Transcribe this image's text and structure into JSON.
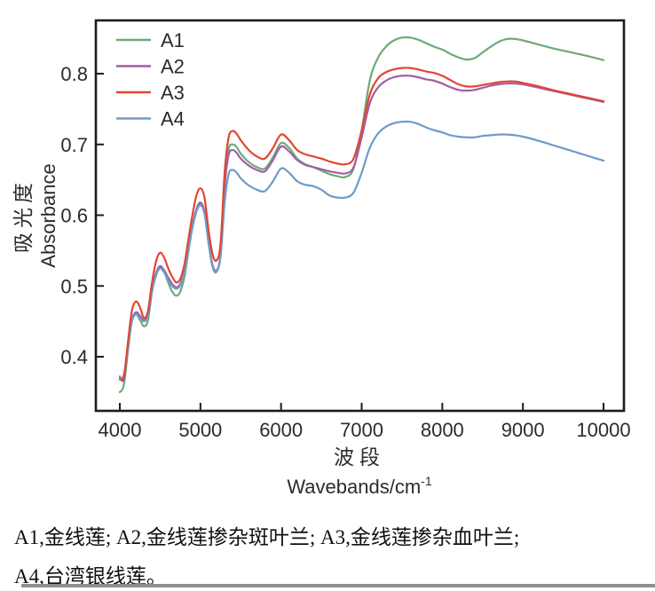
{
  "figure": {
    "ylabel_zh": "吸光度",
    "ylabel_en": "Absorbance",
    "xlabel_zh": "波段",
    "xlabel_en": "Wavebands/cm",
    "xlabel_sup": "-1"
  },
  "chart_data": {
    "type": "line",
    "title": "",
    "xlabel": "波段 Wavebands/cm⁻¹",
    "ylabel": "吸光度 Absorbance",
    "x_axis_range": [
      3700,
      10250
    ],
    "y_axis_range": [
      0.323,
      0.875
    ],
    "xticks": [
      4000,
      5000,
      6000,
      7000,
      8000,
      9000,
      10000
    ],
    "yticks": [
      0.4,
      0.5,
      0.6,
      0.7,
      0.8
    ],
    "grid": false,
    "legend_position": "top-left",
    "x": [
      4000,
      4050,
      4100,
      4150,
      4200,
      4250,
      4300,
      4350,
      4400,
      4450,
      4500,
      4550,
      4600,
      4650,
      4700,
      4750,
      4800,
      4850,
      4900,
      4950,
      5000,
      5050,
      5100,
      5150,
      5200,
      5250,
      5300,
      5350,
      5400,
      5450,
      5500,
      5600,
      5700,
      5800,
      5900,
      6000,
      6100,
      6200,
      6300,
      6400,
      6500,
      6600,
      6700,
      6800,
      6900,
      7000,
      7100,
      7200,
      7300,
      7400,
      7500,
      7600,
      7700,
      7800,
      7900,
      8000,
      8100,
      8200,
      8300,
      8400,
      8500,
      8600,
      8700,
      8800,
      8900,
      9000,
      9200,
      9400,
      9600,
      9800,
      10000
    ],
    "series": [
      {
        "name": "A1",
        "color": "#6eaa78",
        "values": [
          0.35,
          0.36,
          0.408,
          0.45,
          0.46,
          0.452,
          0.443,
          0.452,
          0.492,
          0.518,
          0.528,
          0.52,
          0.505,
          0.492,
          0.486,
          0.492,
          0.512,
          0.548,
          0.583,
          0.608,
          0.618,
          0.605,
          0.562,
          0.527,
          0.52,
          0.545,
          0.645,
          0.693,
          0.7,
          0.696,
          0.687,
          0.675,
          0.668,
          0.666,
          0.682,
          0.702,
          0.695,
          0.68,
          0.672,
          0.668,
          0.663,
          0.658,
          0.655,
          0.654,
          0.666,
          0.72,
          0.79,
          0.822,
          0.838,
          0.847,
          0.851,
          0.851,
          0.848,
          0.843,
          0.838,
          0.834,
          0.828,
          0.823,
          0.82,
          0.822,
          0.83,
          0.838,
          0.845,
          0.849,
          0.849,
          0.847,
          0.841,
          0.835,
          0.83,
          0.825,
          0.819
        ]
      },
      {
        "name": "A2",
        "color": "#a05fa5",
        "values": [
          0.372,
          0.368,
          0.415,
          0.452,
          0.463,
          0.458,
          0.452,
          0.46,
          0.495,
          0.518,
          0.528,
          0.522,
          0.512,
          0.503,
          0.498,
          0.503,
          0.52,
          0.552,
          0.585,
          0.608,
          0.617,
          0.605,
          0.565,
          0.53,
          0.522,
          0.545,
          0.64,
          0.685,
          0.692,
          0.688,
          0.68,
          0.67,
          0.664,
          0.662,
          0.678,
          0.697,
          0.69,
          0.678,
          0.671,
          0.668,
          0.665,
          0.662,
          0.66,
          0.659,
          0.668,
          0.71,
          0.758,
          0.78,
          0.79,
          0.795,
          0.797,
          0.797,
          0.795,
          0.792,
          0.79,
          0.786,
          0.781,
          0.777,
          0.776,
          0.777,
          0.78,
          0.783,
          0.785,
          0.786,
          0.786,
          0.785,
          0.78,
          0.775,
          0.77,
          0.765,
          0.76
        ]
      },
      {
        "name": "A3",
        "color": "#e14632",
        "values": [
          0.368,
          0.372,
          0.42,
          0.465,
          0.478,
          0.47,
          0.455,
          0.465,
          0.505,
          0.535,
          0.547,
          0.54,
          0.525,
          0.513,
          0.505,
          0.51,
          0.53,
          0.565,
          0.6,
          0.628,
          0.638,
          0.625,
          0.58,
          0.545,
          0.536,
          0.56,
          0.66,
          0.71,
          0.719,
          0.715,
          0.706,
          0.692,
          0.683,
          0.68,
          0.695,
          0.714,
          0.706,
          0.692,
          0.686,
          0.683,
          0.68,
          0.676,
          0.673,
          0.672,
          0.68,
          0.72,
          0.77,
          0.793,
          0.802,
          0.806,
          0.808,
          0.808,
          0.806,
          0.803,
          0.801,
          0.797,
          0.791,
          0.785,
          0.782,
          0.782,
          0.784,
          0.786,
          0.788,
          0.789,
          0.789,
          0.787,
          0.782,
          0.776,
          0.771,
          0.766,
          0.761
        ]
      },
      {
        "name": "A4",
        "color": "#6e9bc8",
        "values": [
          0.37,
          0.374,
          0.413,
          0.45,
          0.46,
          0.454,
          0.45,
          0.458,
          0.492,
          0.515,
          0.525,
          0.519,
          0.508,
          0.5,
          0.496,
          0.501,
          0.518,
          0.55,
          0.582,
          0.605,
          0.614,
          0.602,
          0.562,
          0.528,
          0.521,
          0.542,
          0.618,
          0.658,
          0.664,
          0.66,
          0.652,
          0.642,
          0.636,
          0.634,
          0.648,
          0.666,
          0.66,
          0.648,
          0.643,
          0.641,
          0.636,
          0.628,
          0.625,
          0.625,
          0.632,
          0.66,
          0.695,
          0.715,
          0.725,
          0.73,
          0.732,
          0.732,
          0.729,
          0.724,
          0.72,
          0.717,
          0.713,
          0.711,
          0.71,
          0.71,
          0.712,
          0.713,
          0.714,
          0.714,
          0.713,
          0.711,
          0.705,
          0.698,
          0.691,
          0.684,
          0.677
        ]
      }
    ]
  },
  "caption": {
    "line1": "A1,金线莲; A2,金线莲掺杂斑叶兰; A3,金线莲掺杂血叶兰;",
    "line2": "A4,台湾银线莲。"
  }
}
